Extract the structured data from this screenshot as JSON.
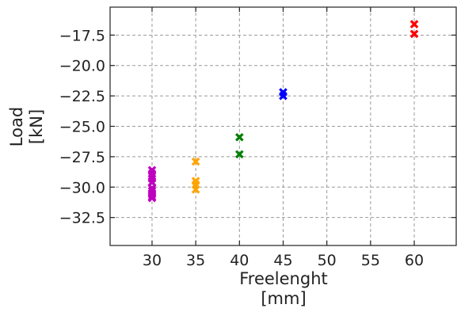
{
  "chart_data": {
    "type": "scatter",
    "title": "",
    "xlabel_line1": "Freelenght",
    "xlabel_line2": "[mm]",
    "ylabel_line1": "Load",
    "ylabel_line2": "[kN]",
    "xlim": [
      25.2,
      64.8
    ],
    "ylim": [
      -34.8,
      -15.2
    ],
    "xticks": [
      30,
      35,
      40,
      45,
      50,
      55,
      60
    ],
    "yticks": [
      -32.5,
      -30.0,
      -27.5,
      -25.0,
      -22.5,
      -20.0,
      -17.5
    ],
    "grid": true,
    "marker": "x",
    "series": [
      {
        "color": "#bf00bf",
        "x": [
          30,
          30,
          30,
          30,
          30,
          30,
          30,
          30,
          30,
          30,
          30
        ],
        "y": [
          -28.6,
          -28.9,
          -29.3,
          -29.6,
          -30.1,
          -30.3,
          -30.5,
          -30.8,
          -30.9,
          -29.1,
          -30.6
        ]
      },
      {
        "color": "#ffa500",
        "x": [
          35,
          35,
          35,
          35
        ],
        "y": [
          -27.9,
          -29.5,
          -29.8,
          -30.2
        ]
      },
      {
        "color": "#008000",
        "x": [
          40,
          40
        ],
        "y": [
          -25.9,
          -27.3
        ]
      },
      {
        "color": "#0000ff",
        "x": [
          45,
          45
        ],
        "y": [
          -22.2,
          -22.5
        ]
      },
      {
        "color": "#ff0000",
        "x": [
          60,
          60
        ],
        "y": [
          -16.6,
          -17.4
        ]
      }
    ]
  }
}
